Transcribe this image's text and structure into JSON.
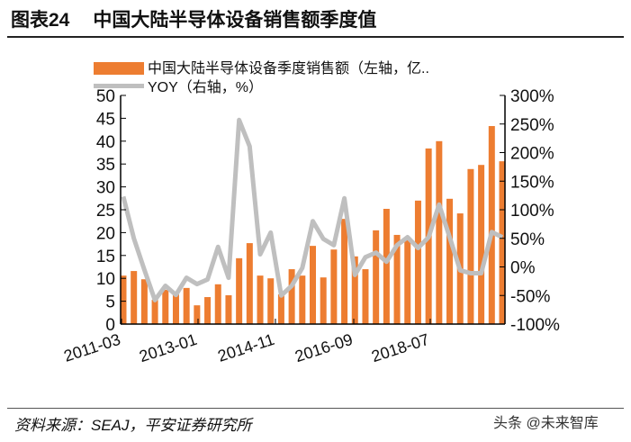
{
  "header": {
    "figure_no": "图表24",
    "title": "中国大陆半导体设备销售额季度值"
  },
  "footer": {
    "source": "资料来源：SEAJ，平安证券研究所",
    "watermark": "头条 @未来智库"
  },
  "colors": {
    "bar": "#ED7D31",
    "line": "#BFBFBF"
  },
  "chart_data": {
    "type": "bar+line",
    "title": "中国大陆半导体设备销售额季度值",
    "legend": [
      "中国大陆半导体设备季度销售额（左轴，亿..",
      "YOY（右轴，%）"
    ],
    "legend_position": "top",
    "x_tick_labels": [
      "2011-03",
      "2013-01",
      "2014-11",
      "2016-09",
      "2018-07"
    ],
    "y_left": {
      "range": [
        0,
        50
      ],
      "ticks": [
        "0",
        "5",
        "10",
        "15",
        "20",
        "25",
        "30",
        "35",
        "40",
        "45",
        "50"
      ]
    },
    "y_right": {
      "range": [
        -100,
        300
      ],
      "ticks": [
        "-100%",
        "-50%",
        "0%",
        "50%",
        "100%",
        "150%",
        "200%",
        "250%",
        "300%"
      ]
    },
    "series": [
      {
        "name": "中国大陆半导体设备季度销售额（左轴，亿..",
        "kind": "bar",
        "values": [
          10.6,
          11.6,
          9.8,
          5.3,
          7.5,
          6.5,
          7.9,
          4.1,
          5.9,
          8.7,
          6.3,
          14.4,
          17.7,
          10.6,
          10,
          6.5,
          12,
          10.6,
          17.1,
          10.2,
          16.3,
          23,
          14.8,
          12,
          20.5,
          25.2,
          19.5,
          19,
          27,
          38.4,
          40,
          27.4,
          24.2,
          33.9,
          34.8,
          43.3,
          35.6
        ]
      },
      {
        "name": "YOY（右轴，%）",
        "kind": "line",
        "values": [
          123,
          50,
          -5,
          -58,
          -33,
          -49,
          -19,
          -30,
          -22,
          35,
          -19,
          257,
          211,
          22,
          60,
          -50,
          -33,
          -2,
          80,
          49,
          38,
          120,
          -14,
          17,
          25,
          9,
          38,
          52,
          33,
          52,
          109,
          52,
          -6,
          -11,
          -11,
          61,
          52
        ]
      }
    ]
  }
}
